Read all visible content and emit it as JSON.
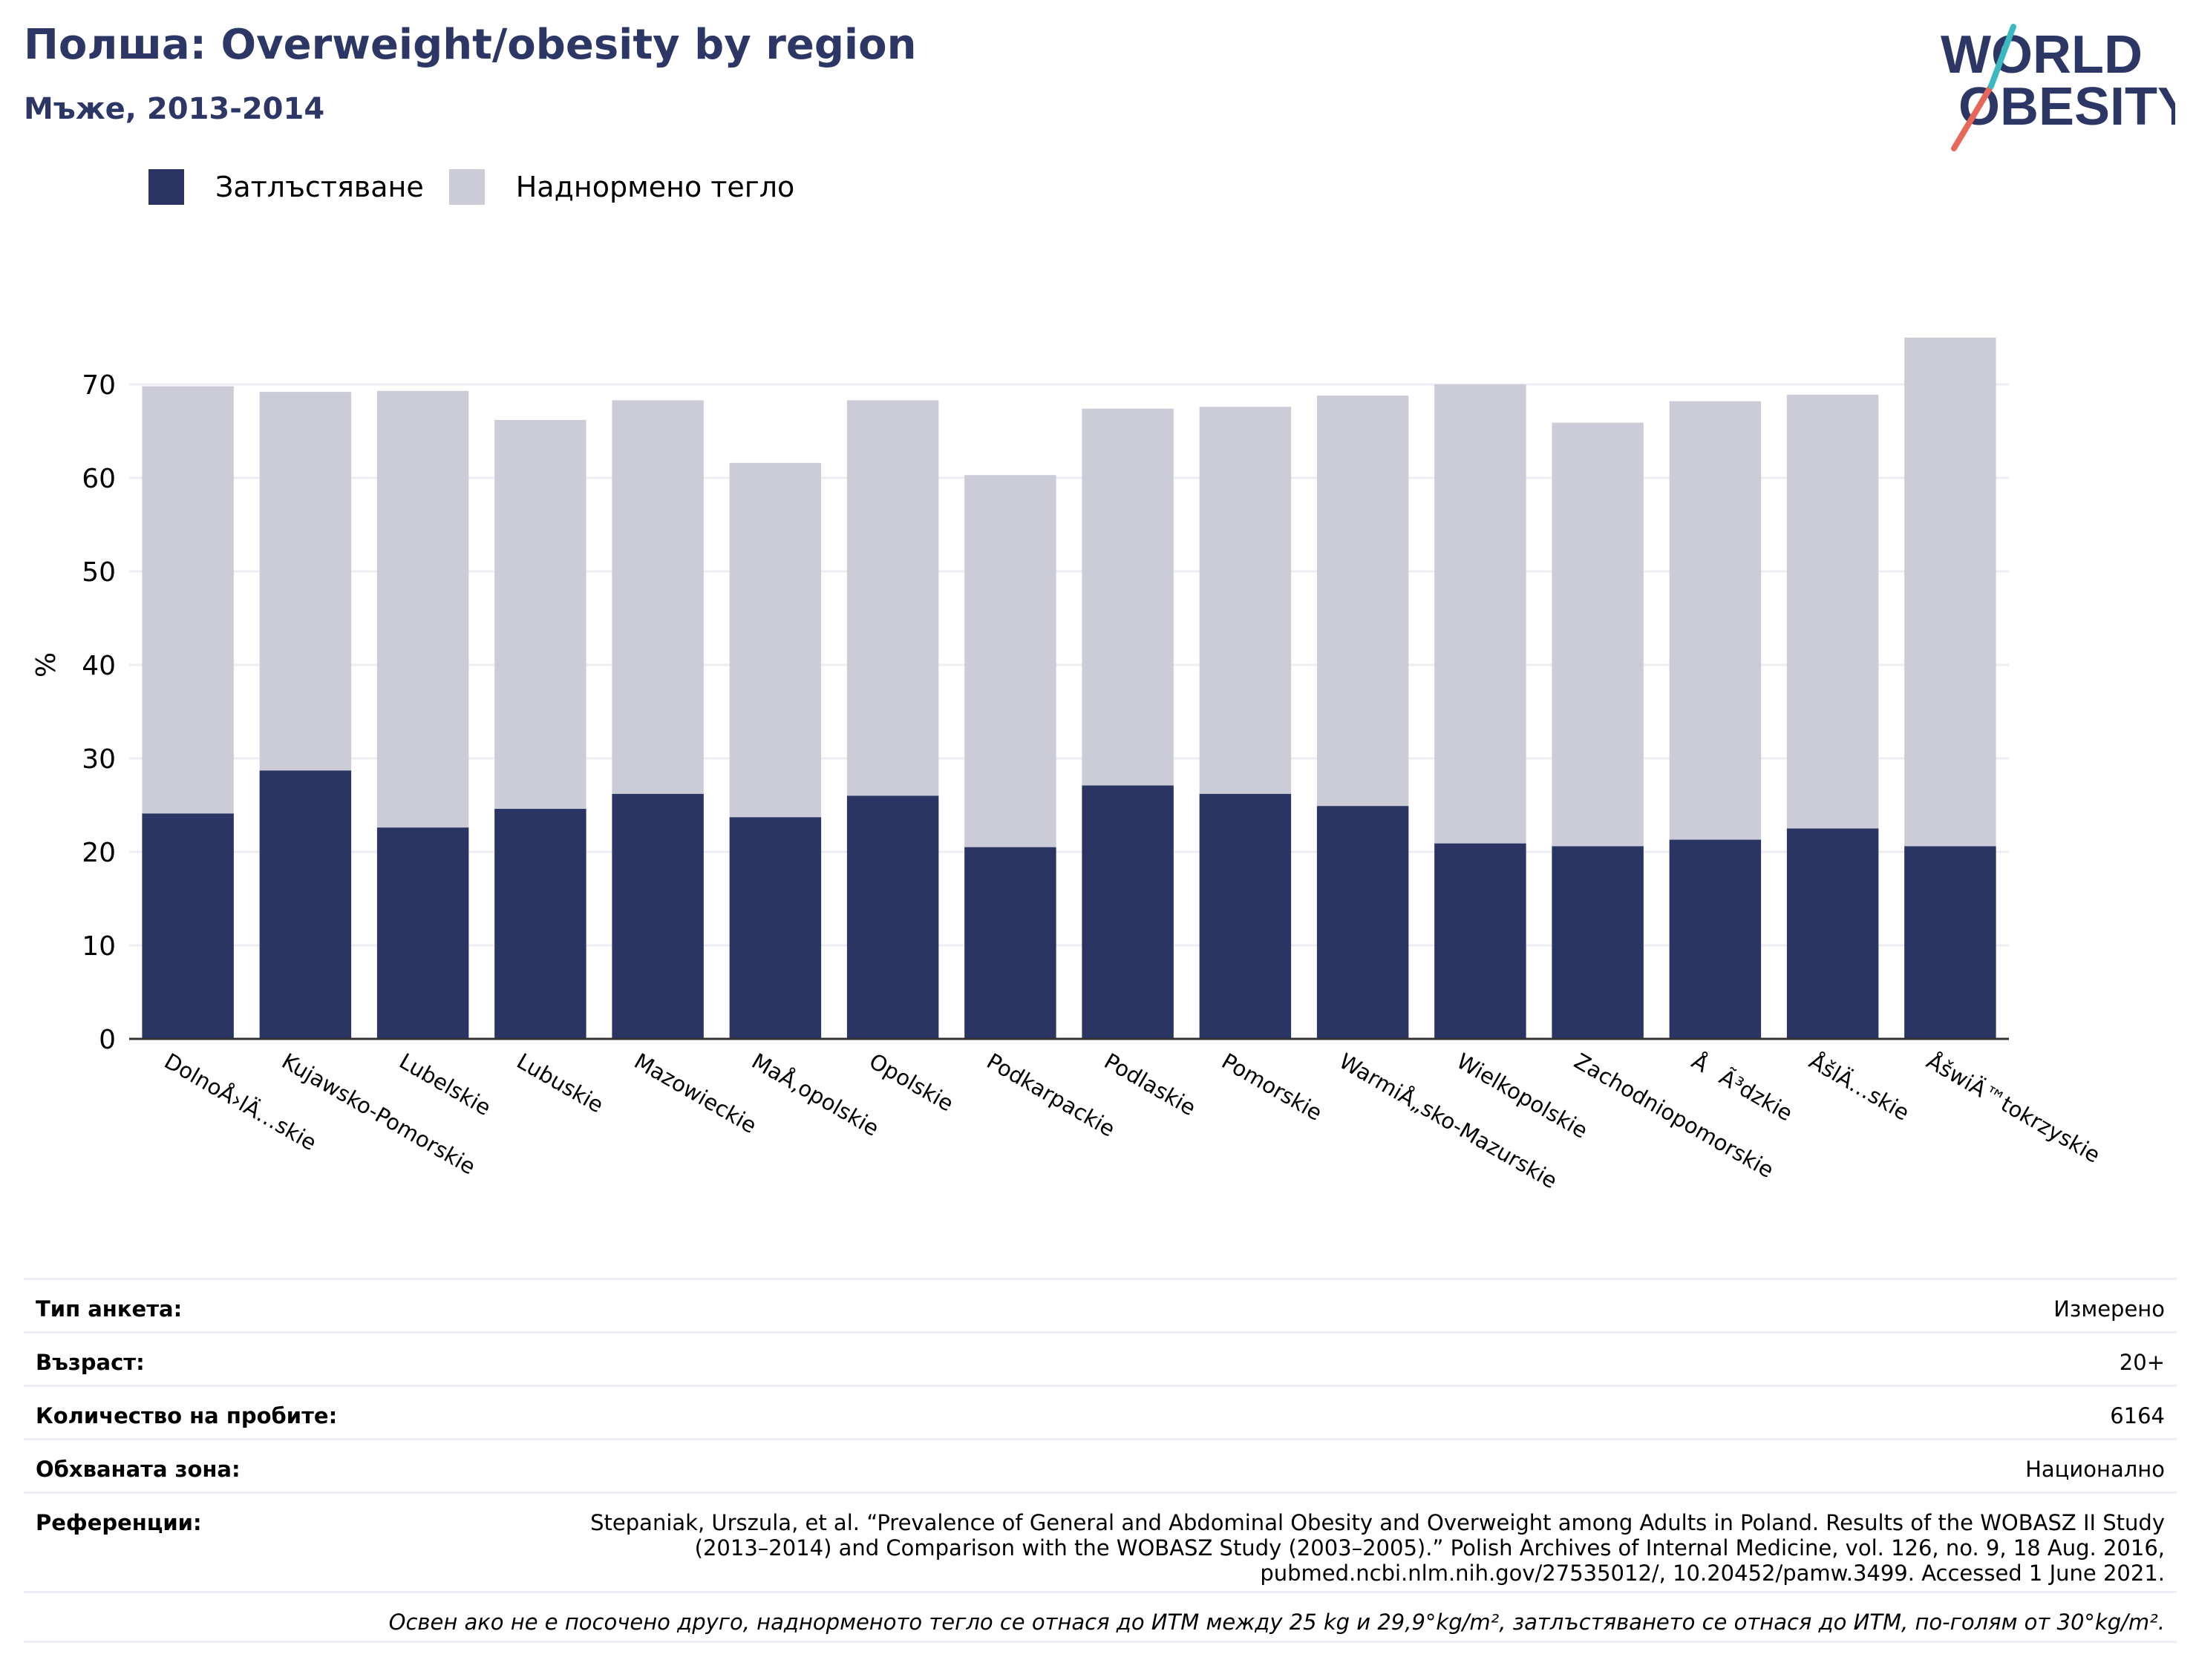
{
  "header": {
    "title": "Полша: Overweight/obesity by region",
    "subtitle": "Мъже, 2013-2014",
    "logo_text": "WORLD OBESITY"
  },
  "colors": {
    "obesity": "#2b3564",
    "overweight": "#cbccd8",
    "title": "#2d3765",
    "logo_teal": "#3bb9c2",
    "logo_coral": "#e8675b"
  },
  "legend": [
    {
      "label": "Затлъстяване",
      "color": "#2b3564"
    },
    {
      "label": "Наднормено тегло",
      "color": "#cbccd8"
    }
  ],
  "chart_data": {
    "type": "bar",
    "stacked": false,
    "ylabel": "%",
    "ylim": [
      0,
      75
    ],
    "yticks": [
      0,
      10,
      20,
      30,
      40,
      50,
      60,
      70
    ],
    "grid": true,
    "legend_position": "top-left",
    "categories": [
      "DolnoÅ›lÄ…skie",
      "Kujawsko-Pomorskie",
      "Lubelskie",
      "Lubuskie",
      "Mazowieckie",
      "MaÅ‚opolskie",
      "Opolskie",
      "Podkarpackie",
      "Podlaskie",
      "Pomorskie",
      "WarmiÅ„sko-Mazurskie",
      "Wielkopolskie",
      "Zachodniopomorskie",
      "ÅÃ³dzkie",
      "ÅšlÄ…skie",
      "ÅšwiÄ™tokrzyskie"
    ],
    "series": [
      {
        "name": "Наднормено тегло",
        "values": [
          69.8,
          69.2,
          69.3,
          66.2,
          68.3,
          61.6,
          68.3,
          60.3,
          67.4,
          67.6,
          68.8,
          70.0,
          65.9,
          68.2,
          68.9,
          75.0
        ]
      },
      {
        "name": "Затлъстяване",
        "values": [
          24.1,
          28.7,
          22.6,
          24.6,
          26.2,
          23.7,
          26.0,
          20.5,
          27.1,
          26.2,
          24.9,
          20.9,
          20.6,
          21.3,
          22.5,
          20.6
        ]
      }
    ]
  },
  "meta": [
    {
      "key": "Тип анкета:",
      "value": "Измерено"
    },
    {
      "key": "Възраст:",
      "value": "20+"
    },
    {
      "key": "Количество на пробите:",
      "value": "6164"
    },
    {
      "key": "Обхваната зона:",
      "value": "Национално"
    },
    {
      "key": "Референции:",
      "value": "Stepaniak, Urszula, et al. “Prevalence of General and Abdominal Obesity and Overweight among Adults in Poland. Results of the WOBASZ II Study (2013–2014) and Comparison with the WOBASZ Study (2003–2005).” Polish Archives of Internal Medicine, vol. 126, no. 9, 18 Aug. 2016, pubmed.ncbi.nlm.nih.gov/27535012/, 10.20452/pamw.3499. Accessed 1 June 2021."
    }
  ],
  "note": "Освен ако не е посочено друго, наднорменото тегло се отнася до ИТМ между 25 kg и 29,9°kg/m², затлъстяването се отнася до ИТМ, по-голям от 30°kg/m²."
}
